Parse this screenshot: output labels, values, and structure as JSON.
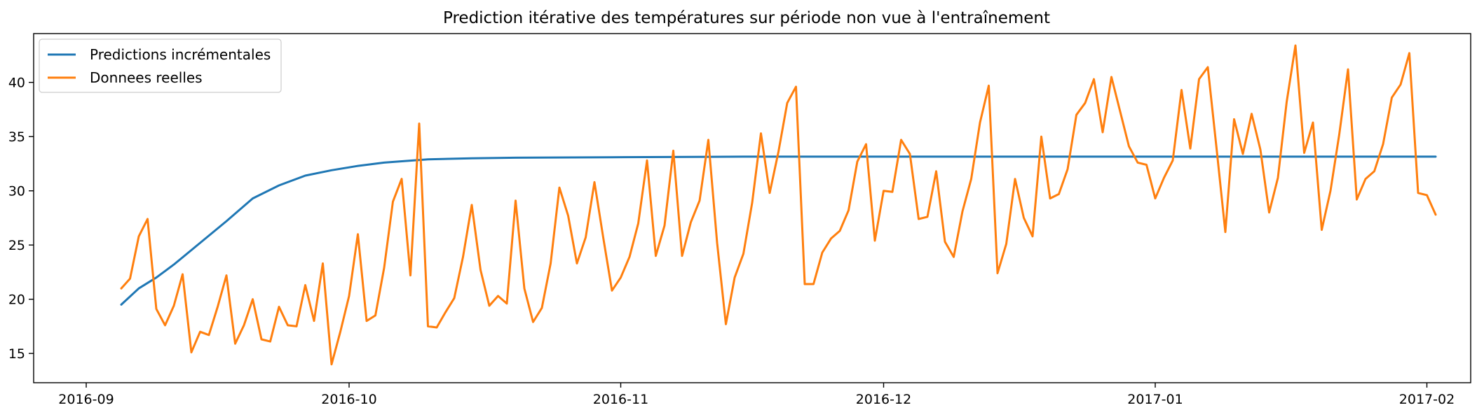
{
  "chart_data": {
    "type": "line",
    "title": "Prediction itérative des températures sur période non vue à l'entraînement",
    "xlabel": "",
    "ylabel": "",
    "x_axis": "date",
    "xlim": [
      "2016-08-26",
      "2017-02-06"
    ],
    "ylim": [
      12.3,
      44.5
    ],
    "xticks": [
      "2016-09-01",
      "2016-10-01",
      "2016-11-01",
      "2016-12-01",
      "2017-01-01",
      "2017-02-01"
    ],
    "xtick_labels": [
      "2016-09",
      "2016-10",
      "2016-11",
      "2016-12",
      "2017-01",
      "2017-02"
    ],
    "yticks": [
      15,
      20,
      25,
      30,
      35,
      40
    ],
    "ytick_labels": [
      "15",
      "20",
      "25",
      "30",
      "35",
      "40"
    ],
    "grid": false,
    "legend_position": "top-left",
    "series": [
      {
        "name": "Predictions incrémentales",
        "color": "#1f77b4",
        "x": [
          "2016-09-05",
          "2016-09-07",
          "2016-09-09",
          "2016-09-11",
          "2016-09-14",
          "2016-09-17",
          "2016-09-20",
          "2016-09-23",
          "2016-09-26",
          "2016-09-29",
          "2016-10-02",
          "2016-10-05",
          "2016-10-10",
          "2016-10-15",
          "2016-10-20",
          "2016-10-31",
          "2016-11-15",
          "2016-12-01",
          "2016-12-15",
          "2017-01-01",
          "2017-01-15",
          "2017-02-02"
        ],
        "y": [
          19.5,
          21.0,
          22.0,
          23.2,
          25.2,
          27.2,
          29.3,
          30.5,
          31.4,
          31.9,
          32.3,
          32.6,
          32.9,
          33.0,
          33.05,
          33.1,
          33.15,
          33.15,
          33.15,
          33.15,
          33.15,
          33.15
        ]
      },
      {
        "name": "Donnees reelles",
        "color": "#ff7f0e",
        "x": [
          "2016-09-05",
          "2016-09-06",
          "2016-09-07",
          "2016-09-08",
          "2016-09-09",
          "2016-09-10",
          "2016-09-11",
          "2016-09-12",
          "2016-09-13",
          "2016-09-14",
          "2016-09-15",
          "2016-09-16",
          "2016-09-17",
          "2016-09-18",
          "2016-09-19",
          "2016-09-20",
          "2016-09-21",
          "2016-09-22",
          "2016-09-23",
          "2016-09-24",
          "2016-09-25",
          "2016-09-26",
          "2016-09-27",
          "2016-09-28",
          "2016-09-29",
          "2016-09-30",
          "2016-10-01",
          "2016-10-02",
          "2016-10-03",
          "2016-10-04",
          "2016-10-05",
          "2016-10-06",
          "2016-10-07",
          "2016-10-08",
          "2016-10-09",
          "2016-10-10",
          "2016-10-11",
          "2016-10-12",
          "2016-10-13",
          "2016-10-14",
          "2016-10-15",
          "2016-10-16",
          "2016-10-17",
          "2016-10-18",
          "2016-10-19",
          "2016-10-20",
          "2016-10-21",
          "2016-10-22",
          "2016-10-23",
          "2016-10-24",
          "2016-10-25",
          "2016-10-26",
          "2016-10-27",
          "2016-10-28",
          "2016-10-29",
          "2016-10-30",
          "2016-10-31",
          "2016-11-01",
          "2016-11-02",
          "2016-11-03",
          "2016-11-04",
          "2016-11-05",
          "2016-11-06",
          "2016-11-07",
          "2016-11-08",
          "2016-11-09",
          "2016-11-10",
          "2016-11-11",
          "2016-11-12",
          "2016-11-13",
          "2016-11-14",
          "2016-11-15",
          "2016-11-16",
          "2016-11-17",
          "2016-11-18",
          "2016-11-19",
          "2016-11-20",
          "2016-11-21",
          "2016-11-22",
          "2016-11-23",
          "2016-11-24",
          "2016-11-25",
          "2016-11-26",
          "2016-11-27",
          "2016-11-28",
          "2016-11-29",
          "2016-11-30",
          "2016-12-01",
          "2016-12-02",
          "2016-12-03",
          "2016-12-04",
          "2016-12-05",
          "2016-12-06",
          "2016-12-07",
          "2016-12-08",
          "2016-12-09",
          "2016-12-10",
          "2016-12-11",
          "2016-12-12",
          "2016-12-13",
          "2016-12-14",
          "2016-12-15",
          "2016-12-16",
          "2016-12-17",
          "2016-12-18",
          "2016-12-19",
          "2016-12-20",
          "2016-12-21",
          "2016-12-22",
          "2016-12-23",
          "2016-12-24",
          "2016-12-25",
          "2016-12-26",
          "2016-12-27",
          "2016-12-28",
          "2016-12-29",
          "2016-12-30",
          "2016-12-31",
          "2017-01-01",
          "2017-01-02",
          "2017-01-03",
          "2017-01-04",
          "2017-01-05",
          "2017-01-06",
          "2017-01-07",
          "2017-01-08",
          "2017-01-09",
          "2017-01-10",
          "2017-01-11",
          "2017-01-12",
          "2017-01-13",
          "2017-01-14",
          "2017-01-15",
          "2017-01-16",
          "2017-01-17",
          "2017-01-18",
          "2017-01-19",
          "2017-01-20",
          "2017-01-21",
          "2017-01-22",
          "2017-01-23",
          "2017-01-24",
          "2017-01-25",
          "2017-01-26",
          "2017-01-27",
          "2017-01-28",
          "2017-01-29",
          "2017-01-30",
          "2017-01-31",
          "2017-02-01",
          "2017-02-02"
        ],
        "y": [
          21.0,
          21.9,
          25.8,
          27.4,
          19.1,
          17.6,
          19.4,
          22.3,
          15.1,
          17.0,
          16.7,
          19.3,
          22.2,
          15.9,
          17.6,
          20.0,
          16.3,
          16.1,
          19.3,
          17.6,
          17.5,
          21.3,
          18.0,
          23.3,
          14.0,
          17.0,
          20.3,
          26.0,
          18.0,
          18.5,
          22.9,
          29.0,
          31.1,
          22.2,
          36.2,
          17.5,
          17.4,
          18.8,
          20.1,
          23.9,
          28.7,
          22.7,
          19.4,
          20.3,
          19.6,
          29.1,
          21.0,
          17.9,
          19.2,
          23.3,
          30.3,
          27.7,
          23.3,
          25.7,
          30.8,
          25.7,
          20.8,
          22.0,
          23.9,
          27.0,
          32.8,
          24.0,
          26.8,
          33.7,
          24.0,
          27.1,
          29.1,
          34.7,
          25.2,
          17.7,
          22.0,
          24.2,
          28.9,
          35.3,
          29.8,
          33.6,
          38.1,
          39.6,
          21.4,
          21.4,
          24.3,
          25.6,
          26.3,
          28.2,
          32.7,
          34.3,
          25.4,
          30.0,
          29.9,
          34.7,
          33.4,
          27.4,
          27.6,
          31.8,
          25.3,
          23.9,
          28.1,
          31.1,
          36.3,
          39.7,
          22.4,
          25.1,
          31.1,
          27.5,
          25.8,
          35.0,
          29.3,
          29.7,
          32.0,
          37.0,
          38.1,
          40.3,
          35.4,
          40.5,
          37.3,
          34.1,
          32.6,
          32.4,
          29.3,
          31.2,
          32.8,
          39.3,
          33.9,
          40.3,
          41.4,
          33.9,
          26.2,
          36.6,
          33.4,
          37.1,
          33.8,
          28.0,
          31.2,
          38.2,
          43.4,
          33.5,
          36.3,
          26.4,
          30.0,
          35.2,
          41.2,
          29.2,
          31.1,
          31.8,
          34.3,
          38.6,
          39.8,
          42.7,
          29.8,
          29.6,
          27.8
        ]
      }
    ]
  }
}
